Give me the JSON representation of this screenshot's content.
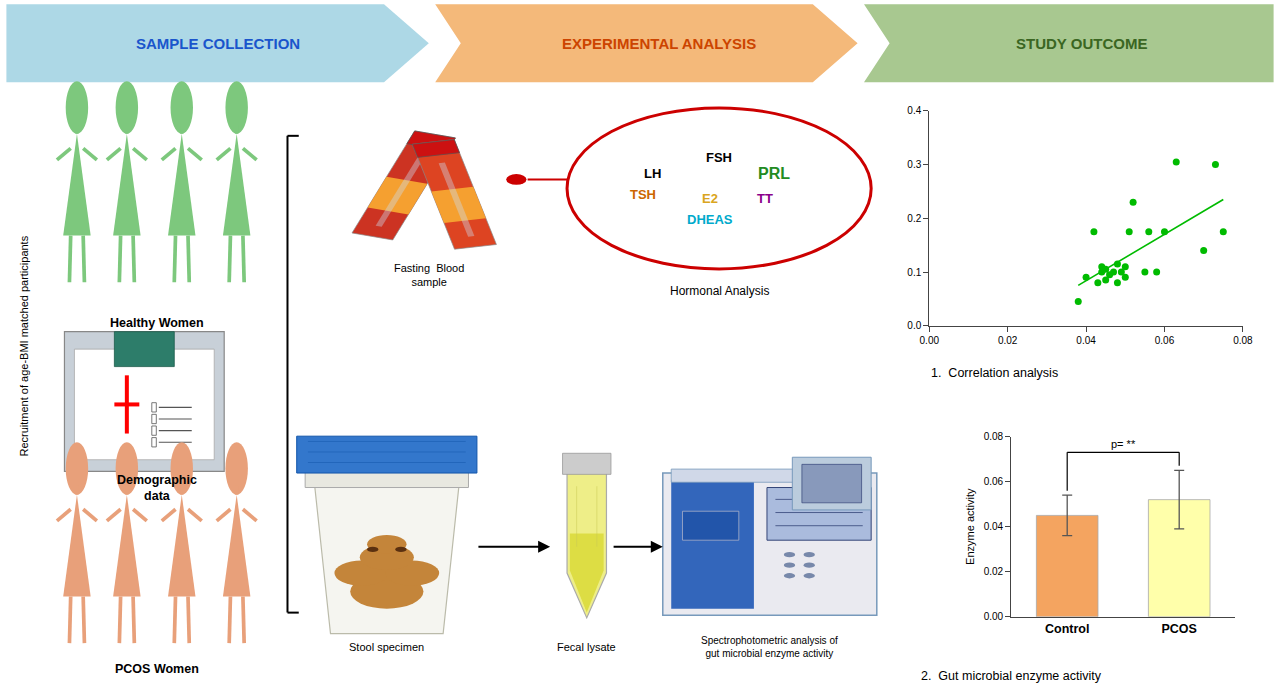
{
  "chart_data": [
    {
      "type": "scatter",
      "title": "1.  Correlation analysis",
      "series": [
        {
          "type": "scatter",
          "color": "#00BB00",
          "x": [
            0.038,
            0.04,
            0.042,
            0.043,
            0.044,
            0.044,
            0.045,
            0.045,
            0.046,
            0.047,
            0.048,
            0.048,
            0.049,
            0.05,
            0.05,
            0.051,
            0.052,
            0.055,
            0.056,
            0.058,
            0.06,
            0.063,
            0.07,
            0.073,
            0.075
          ],
          "values": [
            0.045,
            0.09,
            0.175,
            0.08,
            0.1,
            0.11,
            0.085,
            0.105,
            0.095,
            0.1,
            0.115,
            0.08,
            0.1,
            0.09,
            0.11,
            0.175,
            0.23,
            0.1,
            0.175,
            0.1,
            0.175,
            0.305,
            0.14,
            0.3,
            0.175
          ]
        },
        {
          "type": "line",
          "color": "#00BB00",
          "x": [
            0.038,
            0.075
          ],
          "values": [
            0.07504,
            0.23504
          ]
        }
      ],
      "xlim": [
        0.0,
        0.08
      ],
      "ylim": [
        0.0,
        0.4
      ],
      "xticks": [
        {
          "value": 0,
          "label": "0.00"
        },
        0.02,
        0.04,
        0.06,
        0.08
      ],
      "yticks": [
        {
          "value": 0,
          "label": "0.0"
        },
        0.1,
        0.2,
        0.3,
        0.4
      ],
      "grid": false,
      "annotations": [
        {
          "text": "SAMPLE COLLECTION",
          "color": "#1A55CC"
        },
        {
          "text": "EXPERIMENTAL ANALYSIS",
          "color": "#CC4400"
        },
        {
          "text": "STUDY OUTCOME",
          "color": "#3A6622"
        },
        "Recruitment of age-BMI matched participants",
        "Healthy Women",
        "Demographic\ndata",
        "PCOS Women",
        "Fasting  Blood\nsample",
        {
          "text": "FSH",
          "color": "#000000"
        },
        {
          "text": "LH",
          "color": "#000000"
        },
        {
          "text": "PRL",
          "color": "#228B22"
        },
        {
          "text": "TSH",
          "color": "#CC6600"
        },
        {
          "text": "E2",
          "color": "#DAA520"
        },
        {
          "text": "TT",
          "color": "#8B008B"
        },
        {
          "text": "DHEAS",
          "color": "#00AACC"
        },
        "Hormonal Analysis",
        "Stool specimen",
        "Fecal lysate",
        "Spectrophotometric analysis of\ngut microbial enzyme activity"
      ]
    },
    {
      "type": "bar",
      "title": "2.  Gut microbial enzyme activity",
      "categories": [
        "Control",
        "PCOS"
      ],
      "values": [
        0.045,
        0.052
      ],
      "errors": [
        0.009,
        0.013
      ],
      "colors": [
        "#F4A460",
        "#FFFFAA"
      ],
      "y_label": "Enzyme activity",
      "ylim": [
        0.0,
        0.08
      ],
      "yticks": [
        {
          "value": 0,
          "label": "0.00"
        },
        0.02,
        0.04,
        0.06,
        0.08
      ],
      "grid": false,
      "annotations": [
        "p= **"
      ]
    }
  ]
}
